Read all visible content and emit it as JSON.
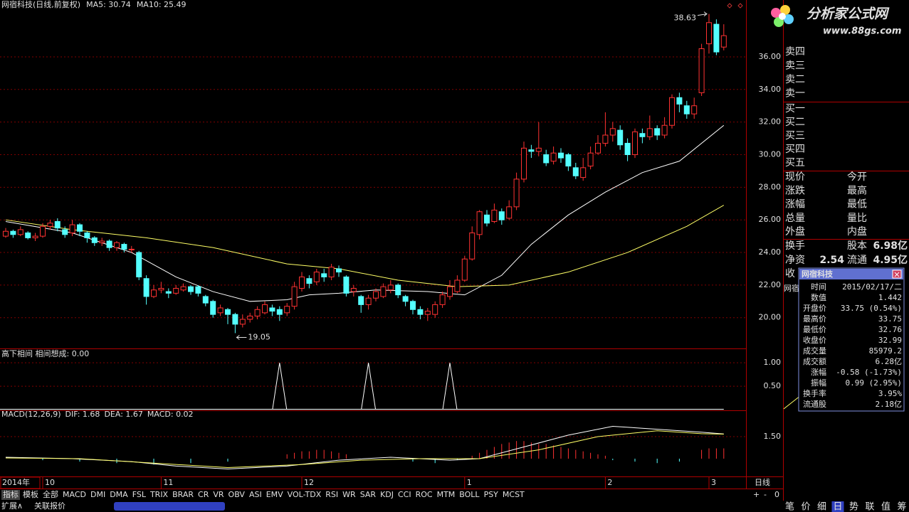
{
  "header": {
    "title": "网宿科技(日线,前复权)",
    "ma5": "MA5: 30.74",
    "ma10": "MA10: 25.49"
  },
  "chart_data": {
    "type": "candlestick",
    "up_color": "#ff3232",
    "down_color": "#54ffff",
    "candles": [
      [
        25.0,
        25.3,
        25.5,
        24.9
      ],
      [
        25.3,
        25.1,
        25.4,
        24.9
      ],
      [
        25.1,
        25.4,
        25.6,
        25.0
      ],
      [
        25.2,
        24.9,
        25.3,
        24.8
      ],
      [
        24.9,
        25.0,
        25.2,
        24.7
      ],
      [
        25.0,
        25.6,
        25.8,
        24.9
      ],
      [
        25.6,
        25.8,
        26.0,
        25.4
      ],
      [
        25.9,
        25.5,
        26.1,
        25.3
      ],
      [
        25.4,
        25.1,
        25.6,
        24.9
      ],
      [
        25.2,
        25.7,
        26.0,
        25.0
      ],
      [
        25.7,
        25.3,
        25.8,
        25.0
      ],
      [
        25.2,
        24.9,
        25.3,
        24.6
      ],
      [
        24.9,
        24.6,
        25.0,
        24.4
      ],
      [
        24.6,
        24.7,
        24.9,
        24.4
      ],
      [
        24.7,
        24.3,
        24.8,
        24.1
      ],
      [
        24.3,
        24.6,
        24.7,
        24.1
      ],
      [
        24.5,
        24.2,
        24.6,
        24.0
      ],
      [
        24.2,
        24.2,
        24.4,
        24.0
      ],
      [
        24.0,
        22.5,
        24.1,
        22.3
      ],
      [
        22.4,
        21.3,
        22.6,
        20.8
      ],
      [
        21.3,
        21.7,
        22.0,
        21.2
      ],
      [
        21.7,
        21.8,
        22.2,
        21.5
      ],
      [
        21.6,
        21.5,
        21.8,
        21.2
      ],
      [
        21.5,
        21.8,
        22.0,
        21.4
      ],
      [
        21.7,
        21.9,
        22.1,
        21.6
      ],
      [
        21.9,
        21.6,
        22.0,
        21.4
      ],
      [
        21.9,
        21.5,
        22.0,
        21.3
      ],
      [
        21.3,
        20.9,
        21.4,
        20.7
      ],
      [
        21.0,
        20.2,
        21.1,
        20.0
      ],
      [
        20.3,
        20.6,
        20.8,
        20.1
      ],
      [
        20.5,
        20.2,
        20.6,
        19.6
      ],
      [
        20.2,
        19.6,
        20.3,
        19.05
      ],
      [
        19.6,
        19.9,
        20.2,
        19.4
      ],
      [
        19.9,
        20.1,
        20.3,
        19.7
      ],
      [
        20.1,
        20.5,
        20.7,
        19.9
      ],
      [
        20.3,
        20.8,
        21.0,
        20.2
      ],
      [
        20.6,
        20.4,
        20.8,
        20.1
      ],
      [
        20.5,
        20.2,
        20.7,
        19.8
      ],
      [
        20.3,
        20.7,
        20.9,
        20.1
      ],
      [
        20.7,
        21.9,
        22.2,
        20.5
      ],
      [
        21.8,
        22.5,
        22.8,
        21.6
      ],
      [
        22.4,
        22.1,
        22.6,
        21.8
      ],
      [
        22.2,
        22.8,
        23.0,
        22.0
      ],
      [
        22.7,
        22.5,
        23.0,
        22.2
      ],
      [
        22.5,
        23.1,
        23.3,
        22.3
      ],
      [
        23.0,
        22.8,
        23.2,
        22.5
      ],
      [
        22.5,
        21.5,
        22.6,
        21.3
      ],
      [
        21.6,
        21.8,
        22.0,
        21.3
      ],
      [
        21.3,
        20.8,
        21.4,
        20.3
      ],
      [
        20.8,
        21.2,
        21.4,
        20.5
      ],
      [
        21.2,
        21.6,
        21.8,
        21.0
      ],
      [
        21.3,
        21.9,
        22.1,
        21.2
      ],
      [
        21.7,
        22.0,
        22.3,
        21.5
      ],
      [
        22.0,
        21.4,
        22.1,
        21.2
      ],
      [
        21.3,
        21.0,
        21.4,
        20.7
      ],
      [
        21.0,
        20.5,
        21.1,
        20.2
      ],
      [
        20.5,
        20.2,
        20.7,
        19.9
      ],
      [
        20.2,
        20.4,
        20.6,
        19.8
      ],
      [
        20.2,
        20.8,
        21.0,
        20.0
      ],
      [
        20.8,
        21.4,
        21.6,
        20.6
      ],
      [
        21.3,
        21.9,
        22.3,
        21.1
      ],
      [
        21.6,
        22.3,
        22.6,
        21.5
      ],
      [
        22.3,
        23.6,
        23.8,
        22.2
      ],
      [
        23.6,
        25.2,
        25.6,
        23.5
      ],
      [
        25.1,
        26.5,
        26.6,
        24.8
      ],
      [
        26.3,
        25.8,
        26.6,
        25.6
      ],
      [
        25.9,
        26.6,
        27.0,
        25.8
      ],
      [
        26.5,
        26.0,
        26.7,
        25.7
      ],
      [
        26.1,
        26.8,
        27.2,
        26.0
      ],
      [
        26.8,
        28.5,
        28.9,
        26.6
      ],
      [
        28.5,
        30.4,
        30.8,
        28.3
      ],
      [
        30.3,
        30.2,
        30.6,
        29.8
      ],
      [
        30.2,
        30.4,
        32.0,
        29.9
      ],
      [
        30.0,
        29.5,
        30.3,
        29.3
      ],
      [
        29.6,
        30.1,
        30.5,
        29.4
      ],
      [
        30.1,
        29.8,
        30.4,
        29.5
      ],
      [
        30.0,
        29.3,
        30.1,
        29.0
      ],
      [
        29.2,
        28.7,
        29.5,
        28.5
      ],
      [
        28.6,
        29.2,
        29.8,
        28.4
      ],
      [
        29.3,
        30.1,
        30.5,
        29.1
      ],
      [
        30.1,
        30.7,
        31.2,
        30.0
      ],
      [
        30.7,
        31.2,
        32.6,
        30.5
      ],
      [
        31.2,
        31.6,
        32.0,
        30.8
      ],
      [
        31.5,
        30.6,
        31.8,
        30.3
      ],
      [
        30.7,
        30.0,
        31.0,
        29.6
      ],
      [
        30.0,
        31.4,
        31.6,
        29.8
      ],
      [
        31.3,
        31.1,
        31.6,
        30.7
      ],
      [
        31.1,
        31.6,
        32.4,
        30.9
      ],
      [
        31.6,
        31.2,
        31.8,
        30.9
      ],
      [
        31.2,
        31.8,
        32.3,
        31.0
      ],
      [
        31.8,
        33.5,
        33.7,
        31.6
      ],
      [
        33.5,
        33.1,
        33.8,
        32.6
      ],
      [
        33.0,
        32.5,
        33.3,
        32.2
      ],
      [
        32.5,
        33.0,
        33.5,
        32.2
      ],
      [
        33.8,
        36.5,
        36.8,
        33.6
      ],
      [
        36.8,
        38.1,
        38.63,
        36.2
      ],
      [
        38.0,
        36.3,
        38.3,
        36.1
      ],
      [
        36.6,
        37.3,
        38.0,
        36.4
      ]
    ],
    "lines": [
      {
        "color": "#ffffff",
        "x": [
          0,
          9,
          17,
          23,
          28,
          33,
          38,
          41,
          45,
          50,
          57,
          62,
          67,
          71,
          76,
          81,
          86,
          91,
          97
        ],
        "values": [
          25.9,
          25.2,
          24.0,
          22.5,
          21.6,
          21.0,
          21.1,
          21.4,
          21.5,
          21.7,
          21.6,
          21.4,
          22.6,
          24.5,
          26.3,
          27.7,
          28.9,
          29.6,
          31.8
        ]
      },
      {
        "color": "#ffff66",
        "x": [
          0,
          9,
          19,
          28,
          38,
          45,
          53,
          61,
          68,
          76,
          84,
          92,
          97
        ],
        "values": [
          26.0,
          25.4,
          24.9,
          24.3,
          23.3,
          23.0,
          22.3,
          21.9,
          22.0,
          22.8,
          24.0,
          25.6,
          26.9
        ]
      }
    ],
    "ylim": [
      18.2,
      39.4
    ],
    "yticks": [
      {
        "value": 36,
        "label": "36.00"
      },
      {
        "value": 34,
        "label": "34.00"
      },
      {
        "value": 32,
        "label": "32.00"
      },
      {
        "value": 30,
        "label": "30.00"
      },
      {
        "value": 28,
        "label": "28.00"
      },
      {
        "value": 26,
        "label": "26.00"
      },
      {
        "value": 24,
        "label": "24.00"
      },
      {
        "value": 22,
        "label": "22.00"
      },
      {
        "value": 20,
        "label": "20.00"
      }
    ],
    "high_label": {
      "value": 38.63,
      "label": "38.63"
    },
    "low_label": {
      "value": 19.05,
      "label": "19.05"
    },
    "year_label": "2014年",
    "xticks": [
      {
        "value": 5,
        "label": "10"
      },
      {
        "value": 21,
        "label": "11"
      },
      {
        "value": 40,
        "label": "12"
      },
      {
        "value": 62,
        "label": "1"
      },
      {
        "value": 81,
        "label": "2"
      },
      {
        "value": 95,
        "label": "3"
      }
    ],
    "period": "日线"
  },
  "indicator": {
    "type": "spike",
    "title": "高下相间  相间想成: 0.00",
    "x": [
      37,
      49,
      60
    ],
    "values": [
      1,
      1,
      1
    ],
    "ylim": [
      0,
      1.2
    ],
    "yticks": [
      {
        "value": 1,
        "label": "1.00"
      },
      {
        "value": 0.5,
        "label": "0.50"
      }
    ]
  },
  "macd": {
    "title": "MACD(12,26,9)",
    "dif": "DIF: 1.68",
    "dea": "DEA: 1.67",
    "macd": "MACD: 0.02",
    "ylim": [
      -1.11,
      3.19
    ],
    "yticks": [
      {
        "value": 1.5,
        "label": "1.50"
      }
    ],
    "dif_line": {
      "color": "#ffffff",
      "x": [
        0,
        9,
        17,
        23,
        30,
        38,
        45,
        52,
        60,
        64,
        70,
        76,
        82,
        88,
        94,
        97
      ],
      "values": [
        0.1,
        0.0,
        -0.2,
        -0.5,
        -0.7,
        -0.5,
        -0.1,
        0.1,
        -0.1,
        0.0,
        0.8,
        1.6,
        2.2,
        2.0,
        1.8,
        1.68
      ]
    },
    "dea_line": {
      "color": "#ffff66",
      "x": [
        0,
        10,
        20,
        30,
        40,
        48,
        56,
        64,
        72,
        80,
        88,
        94,
        97
      ],
      "values": [
        0.05,
        0.0,
        -0.3,
        -0.6,
        -0.4,
        -0.1,
        0.0,
        0.0,
        0.6,
        1.5,
        1.9,
        1.7,
        1.67
      ]
    },
    "hist": {
      "x": [
        5,
        10,
        15,
        20,
        25,
        30,
        38,
        39,
        40,
        41,
        42,
        43,
        44,
        45,
        46,
        55,
        58,
        61,
        63,
        64,
        65,
        66,
        67,
        68,
        69,
        70,
        71,
        72,
        73,
        74,
        75,
        76,
        77,
        78,
        79,
        80,
        81,
        82,
        85,
        88,
        91,
        94,
        95,
        96,
        97
      ],
      "values": [
        -0.1,
        -0.2,
        -0.3,
        -0.4,
        -0.3,
        -0.2,
        0.3,
        0.4,
        0.5,
        0.5,
        0.6,
        0.6,
        0.5,
        0.4,
        0.3,
        -0.2,
        -0.3,
        -0.1,
        0.2,
        0.4,
        0.6,
        0.8,
        1.0,
        1.1,
        1.2,
        1.2,
        1.1,
        1.0,
        1.0,
        0.9,
        0.8,
        0.7,
        0.6,
        0.5,
        0.4,
        0.3,
        0.2,
        -0.1,
        -0.2,
        -0.3,
        -0.2,
        0.6,
        0.7,
        0.7,
        0.7
      ]
    }
  },
  "order_book": {
    "sell": [
      "卖四",
      "卖三",
      "卖二",
      "卖一"
    ],
    "buy": [
      "买一",
      "买二",
      "买三",
      "买四",
      "买五"
    ]
  },
  "quote": {
    "rows": [
      [
        "现价",
        "今开"
      ],
      [
        "涨跌",
        "最高"
      ],
      [
        "涨幅",
        "最低"
      ],
      [
        "总量",
        "量比"
      ],
      [
        "外盘",
        "内盘"
      ]
    ],
    "turnover": "换手",
    "capital": "股本",
    "capital_value": "6.98亿",
    "net_asset": "净资",
    "net_asset_value": "2.54",
    "float": "流通",
    "float_value": "4.95亿",
    "earnings": "收",
    "stock_short": "网宿"
  },
  "popup": {
    "title": "网宿科技",
    "rows": [
      [
        "时间",
        "2015/02/17/二"
      ],
      [
        "数值",
        "1.442"
      ],
      [
        "开盘价",
        "33.75 (0.54%)"
      ],
      [
        "最高价",
        "33.75"
      ],
      [
        "最低价",
        "32.76"
      ],
      [
        "收盘价",
        "32.99"
      ],
      [
        "成交量",
        "85979.2"
      ],
      [
        "成交额",
        "6.28亿"
      ],
      [
        "涨幅",
        "-0.58 (-1.73%)"
      ],
      [
        "振幅",
        "0.99 (2.95%)"
      ],
      [
        "换手率",
        "3.95%"
      ],
      [
        "流通股",
        "2.18亿"
      ]
    ],
    "colors": [
      "#e0e0e0",
      "#e0e0e0",
      "#ff3232",
      "#ff3232",
      "#32ff32",
      "#32ff32",
      "#e0e0e0",
      "#e0e0e0",
      "#32ff32",
      "#e0e0e0",
      "#e0e0e0",
      "#e0e0e0"
    ]
  },
  "logo": {
    "name": "分析家公式网",
    "url": "www.88gs.com"
  },
  "tabs": [
    "指标",
    "模板",
    "全部",
    "MACD",
    "DMI",
    "DMA",
    "FSL",
    "TRIX",
    "BRAR",
    "CR",
    "VR",
    "OBV",
    "ASI",
    "EMV",
    "VOL-TDX",
    "RSI",
    "WR",
    "SAR",
    "KDJ",
    "CCI",
    "ROC",
    "MTM",
    "BOLL",
    "PSY",
    "MCST"
  ],
  "footer": {
    "expand": "扩展∧",
    "related": "关联报价",
    "zoom": [
      "+",
      "-",
      "0"
    ],
    "nav": [
      "笔",
      "价",
      "细",
      "日",
      "势",
      "联",
      "值",
      "筹"
    ]
  }
}
